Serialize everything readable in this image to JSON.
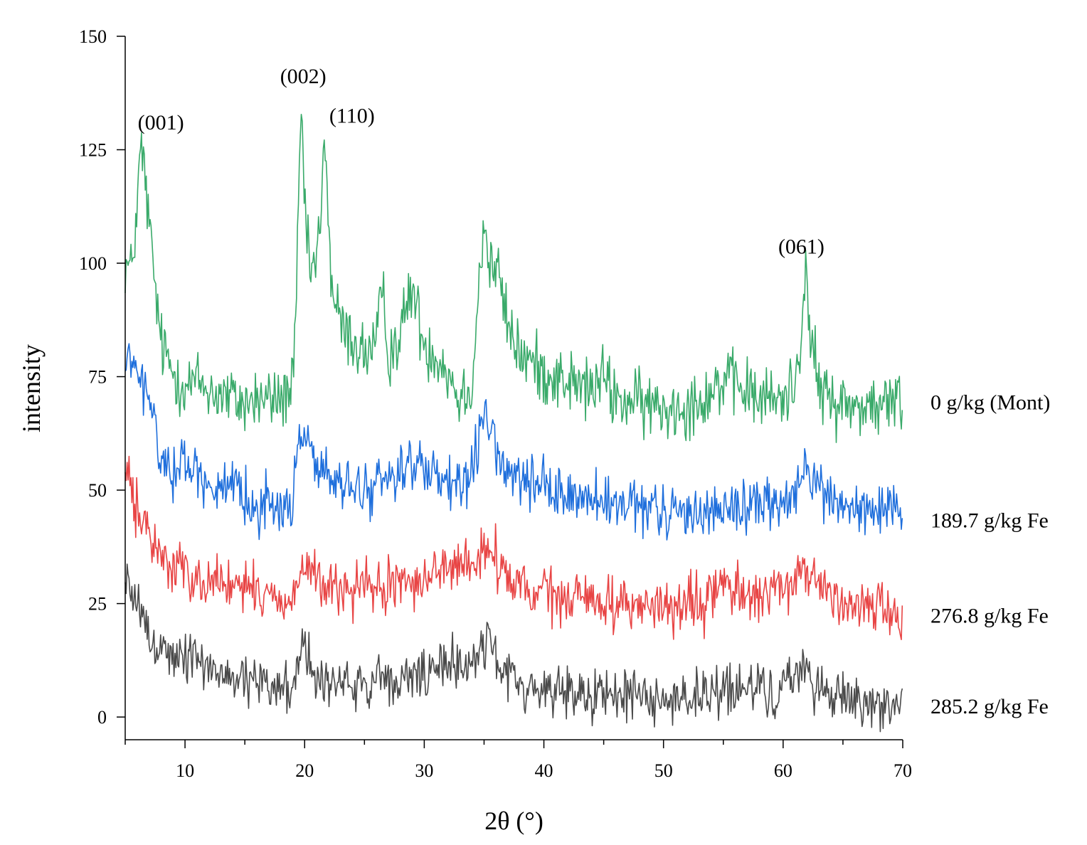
{
  "chart_data": {
    "type": "line",
    "title": "",
    "xlabel": "2θ (°)",
    "ylabel": "intensity",
    "xlim": [
      5,
      70
    ],
    "ylim": [
      -5,
      150
    ],
    "xticks": [
      10,
      20,
      30,
      40,
      50,
      60,
      70
    ],
    "yticks": [
      0,
      25,
      50,
      75,
      100,
      125,
      150
    ],
    "grid": false,
    "legend": "right-of-plot, next to each curve",
    "annotations": [
      {
        "text": "(001)",
        "x": 6.2,
        "y": 126
      },
      {
        "text": "(002)",
        "x": 19.7,
        "y": 134
      },
      {
        "text": "(110)",
        "x": 21.7,
        "y": 130
      },
      {
        "text": "(061)",
        "x": 61.7,
        "y": 99
      }
    ],
    "series": [
      {
        "name": "0 g/kg (Mont)",
        "color": "#3aaa6a",
        "x": [
          5,
          5.5,
          6,
          6.3,
          6.7,
          7,
          7.5,
          8,
          9,
          10,
          11,
          12,
          13,
          14,
          15,
          16,
          17,
          18,
          19,
          19.3,
          19.7,
          20.2,
          20.8,
          21.4,
          21.7,
          22.2,
          23,
          24,
          25,
          26,
          26.5,
          27,
          28,
          28.5,
          29,
          29.5,
          30,
          31,
          32,
          33,
          34,
          34.7,
          35,
          35.5,
          36,
          37,
          38,
          39,
          40,
          42,
          44,
          45,
          46,
          48,
          50,
          52,
          53,
          54,
          55,
          56,
          57,
          58,
          60,
          61,
          61.5,
          61.8,
          62.3,
          63,
          64,
          65,
          66,
          67,
          68,
          69,
          70
        ],
        "y": [
          100,
          98,
          112,
          126,
          118,
          108,
          95,
          82,
          76,
          73,
          74,
          72,
          71,
          70,
          69,
          70,
          70,
          70,
          73,
          90,
          134,
          102,
          98,
          110,
          130,
          96,
          86,
          83,
          80,
          82,
          94,
          80,
          84,
          90,
          95,
          88,
          82,
          80,
          76,
          70,
          74,
          100,
          109,
          98,
          100,
          86,
          80,
          78,
          76,
          74,
          72,
          75,
          70,
          69,
          68,
          69,
          70,
          72,
          74,
          73,
          72,
          70,
          70,
          74,
          84,
          99,
          84,
          72,
          70,
          69,
          68,
          69,
          68,
          69,
          70
        ]
      },
      {
        "name": "189.7 g/kg Fe",
        "color": "#1f6fdc",
        "x": [
          5,
          5.5,
          6,
          6.5,
          7,
          7.5,
          8,
          9,
          10,
          11,
          12,
          13,
          14,
          15,
          16,
          17,
          18,
          19,
          19.5,
          20,
          21,
          22,
          23,
          24,
          25,
          26,
          27,
          28,
          29,
          30,
          31,
          32,
          33,
          34,
          34.7,
          35.3,
          36,
          37,
          38,
          40,
          42,
          44,
          46,
          48,
          50,
          52,
          54,
          56,
          58,
          60,
          61,
          61.7,
          62.5,
          64,
          66,
          68,
          70
        ],
        "y": [
          76,
          80,
          74,
          73,
          70,
          64,
          56,
          55,
          56,
          54,
          52,
          50,
          49,
          48,
          47,
          47,
          46,
          47,
          60,
          64,
          56,
          52,
          51,
          50,
          50,
          51,
          53,
          55,
          56,
          54,
          52,
          51,
          50,
          53,
          64,
          66,
          58,
          54,
          52,
          50,
          49,
          48,
          46,
          46,
          45,
          45,
          46,
          46,
          47,
          47,
          48,
          55,
          52,
          48,
          46,
          45,
          44
        ]
      },
      {
        "name": "276.8 g/kg Fe",
        "color": "#e84545",
        "x": [
          5,
          5.5,
          6,
          6.5,
          7,
          7.5,
          8,
          9,
          10,
          11,
          12,
          13,
          14,
          15,
          16,
          17,
          18,
          19,
          20,
          21,
          22,
          24,
          26,
          28,
          30,
          31,
          32,
          33,
          34,
          35,
          35.5,
          36,
          37,
          38,
          40,
          42,
          44,
          46,
          48,
          50,
          52,
          53,
          54,
          55,
          56,
          58,
          60,
          61,
          62,
          63,
          64,
          66,
          68,
          70
        ],
        "y": [
          54,
          50,
          46,
          42,
          40,
          38,
          36,
          33,
          32,
          31,
          30,
          30,
          29,
          28,
          27,
          27,
          26,
          26,
          34,
          30,
          28,
          28,
          28,
          29,
          31,
          32,
          33,
          33,
          34,
          36,
          37,
          35,
          30,
          28,
          27,
          26,
          26,
          25,
          25,
          24,
          24,
          24,
          27,
          29,
          28,
          27,
          27,
          30,
          32,
          30,
          27,
          25,
          24,
          23
        ]
      },
      {
        "name": "285.2 g/kg Fe",
        "color": "#4a4a4a",
        "x": [
          5,
          5.5,
          6,
          6.5,
          7,
          7.5,
          8,
          9,
          10,
          11,
          12,
          13,
          14,
          15,
          16,
          17,
          18,
          19,
          19.8,
          21,
          22,
          24,
          26,
          28,
          30,
          31,
          32,
          33,
          34,
          35,
          35.4,
          36,
          37,
          38,
          40,
          42,
          44,
          46,
          48,
          50,
          52,
          54,
          56,
          58,
          60,
          61,
          61.7,
          62.5,
          64,
          66,
          68,
          70
        ],
        "y": [
          30,
          27,
          24,
          21,
          19,
          17,
          15,
          14,
          13,
          12,
          11,
          10,
          9,
          8,
          7,
          7,
          7,
          7,
          16,
          9,
          8,
          7,
          7,
          8,
          9,
          10,
          11,
          12,
          13,
          15,
          19,
          13,
          9,
          7,
          6,
          6,
          5,
          5,
          5,
          4,
          4,
          5,
          6,
          6,
          6,
          8,
          12,
          8,
          5,
          4,
          3,
          3
        ]
      }
    ]
  }
}
